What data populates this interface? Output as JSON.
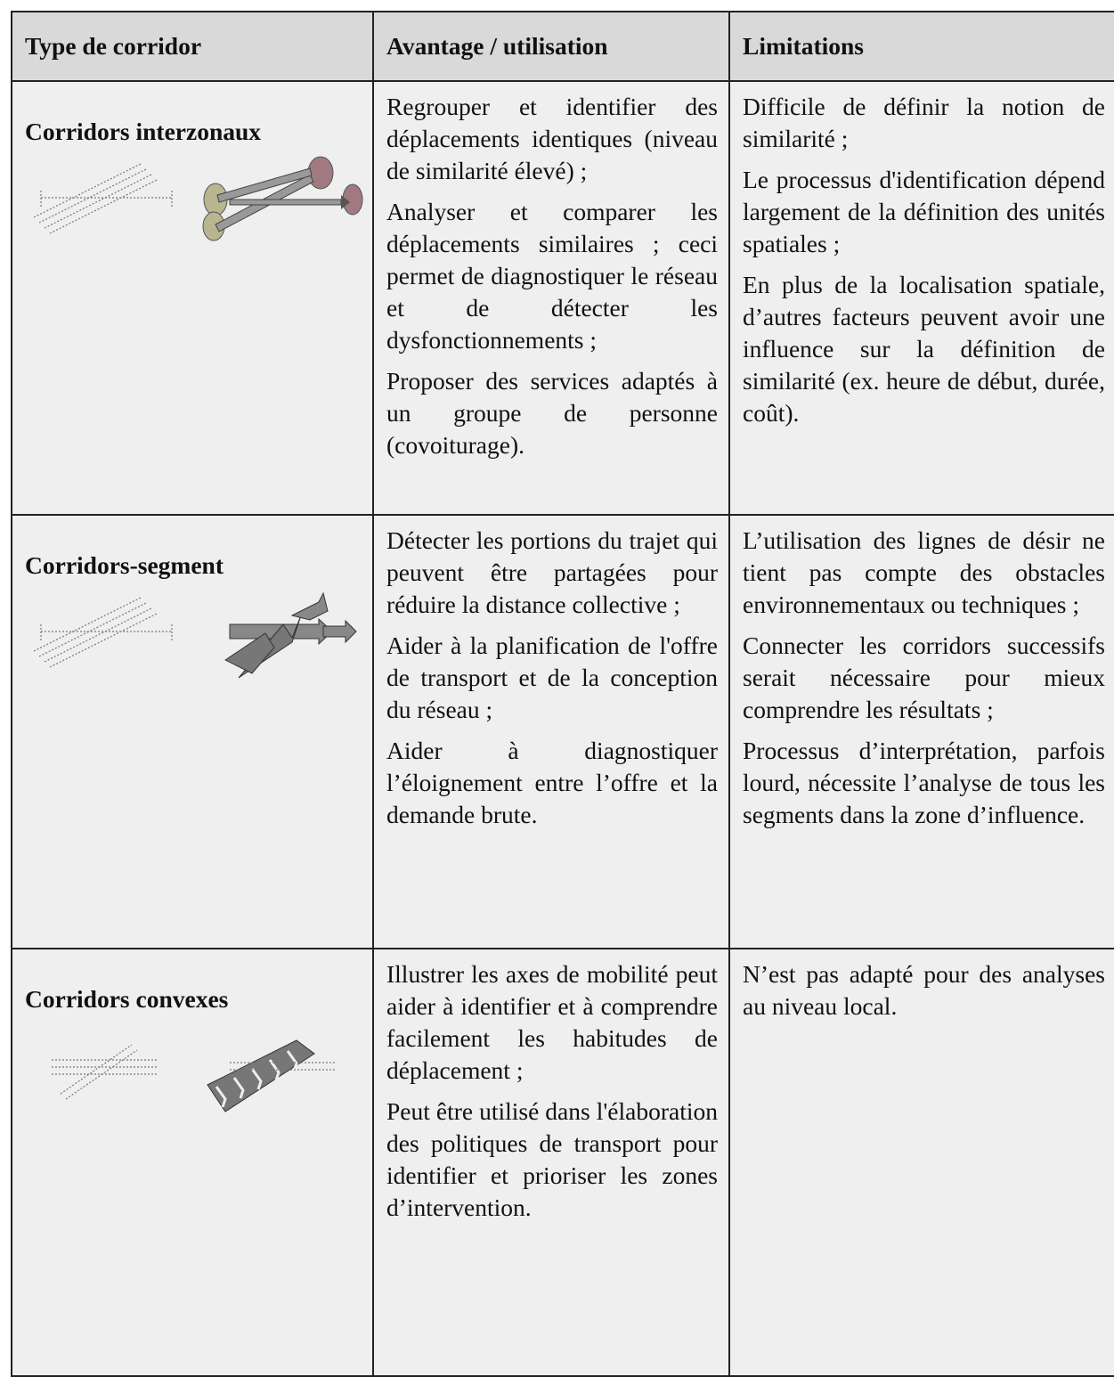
{
  "table": {
    "header": [
      "Type de corridor",
      "Avantage / utilisation",
      "Limitations"
    ],
    "rows": [
      {
        "type": "Corridors interzonaux",
        "advantages": [
          "Regrouper et identifier des déplacements identiques (niveau de similarité élevé) ;",
          "Analyser et comparer les déplacements similaires ; ceci permet de diagnostiquer le réseau et de détecter les dysfonctionnements ;",
          "Proposer des services adaptés à un groupe de personne (covoiturage)."
        ],
        "limitations": [
          "Difficile de définir la notion de similarité ;",
          "Le processus d'identification dépend largement de la définition des unités spatiales ;",
          "En plus de la localisation spatiale, d’autres facteurs peuvent avoir une influence sur la définition de similarité (ex. heure de début, durée, coût)."
        ]
      },
      {
        "type": "Corridors-segment",
        "advantages": [
          "Détecter les portions du trajet qui peuvent être partagées pour réduire la distance collective ;",
          "Aider à la planification de l'offre de transport et de la conception du réseau ;",
          "Aider à diagnostiquer l’éloignement entre l’offre et la demande brute."
        ],
        "limitations": [
          "L’utilisation des lignes de désir ne tient pas compte des obstacles environnementaux ou techniques ;",
          "Connecter les corridors successifs serait nécessaire pour mieux comprendre les résultats ;",
          "Processus d’interprétation, parfois lourd, nécessite l’analyse de tous les segments dans la zone d’influence."
        ]
      },
      {
        "type": "Corridors convexes",
        "advantages": [
          "Illustrer les axes de mobilité peut aider à identifier et à comprendre facilement les habitudes de déplacement ;",
          "Peut être utilisé dans l'élaboration des politiques de transport pour identifier et prioriser les zones d’intervention."
        ],
        "limitations": [
          "N’est pas adapté pour des analyses au niveau local."
        ]
      }
    ]
  }
}
